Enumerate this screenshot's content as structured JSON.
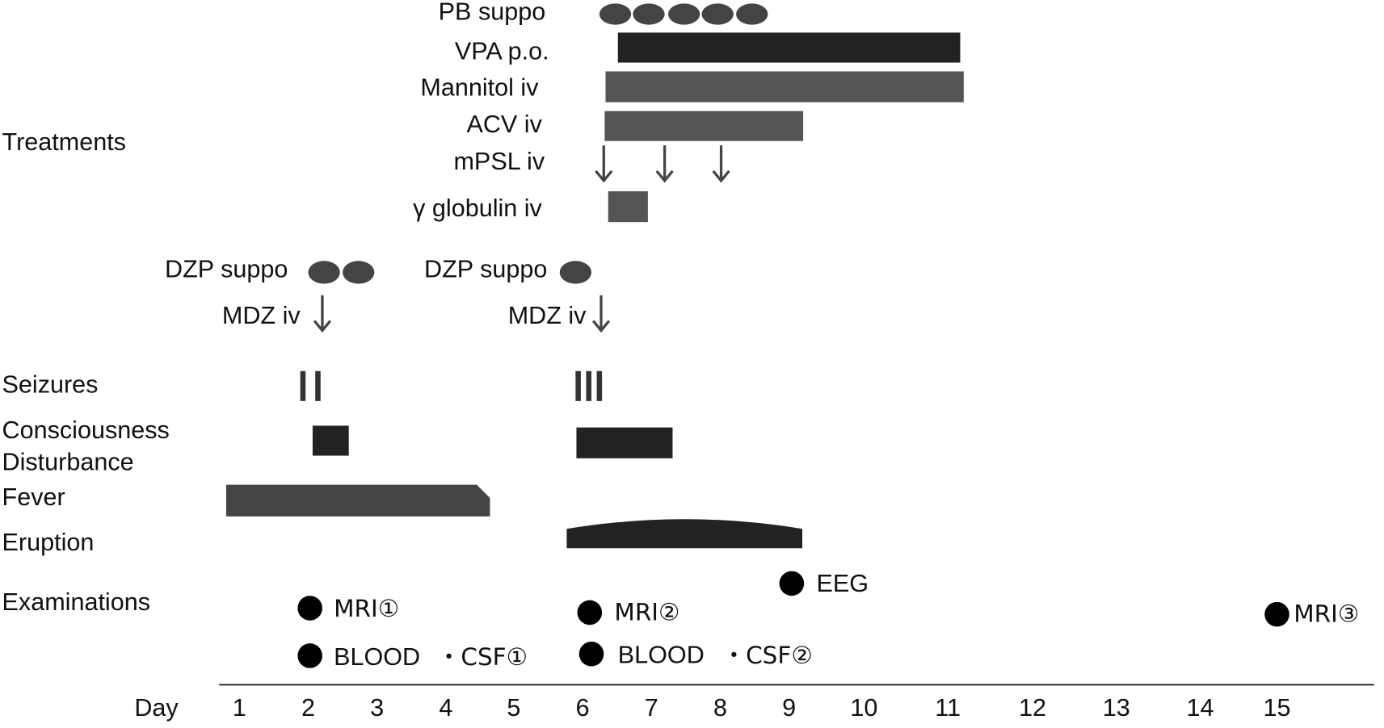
{
  "labels": {
    "treatments": "Treatments",
    "seizures": "Seizures",
    "consciousness": "Consciousness",
    "disturbance": "Disturbance",
    "fever": "Fever",
    "eruption": "Eruption",
    "examinations": "Examinations"
  },
  "treatments": [
    "PB suppo",
    "VPA p.o.",
    "Mannitol iv",
    "ACV iv",
    "mPSL iv",
    "γ globulin iv"
  ],
  "anticonvulsants": [
    "DZP suppo",
    "MDZ iv",
    "DZP suppo",
    "MDZ iv"
  ],
  "exams": [
    "MRI①",
    "EEG",
    "MRI②",
    "MRI③",
    "BLOOD",
    "・CSF①",
    "BLOOD",
    "・CSF②"
  ],
  "axis": {
    "label": "Day",
    "days": [
      1,
      2,
      3,
      4,
      5,
      6,
      7,
      8,
      9,
      10,
      11,
      12,
      13,
      14,
      15
    ]
  }
}
